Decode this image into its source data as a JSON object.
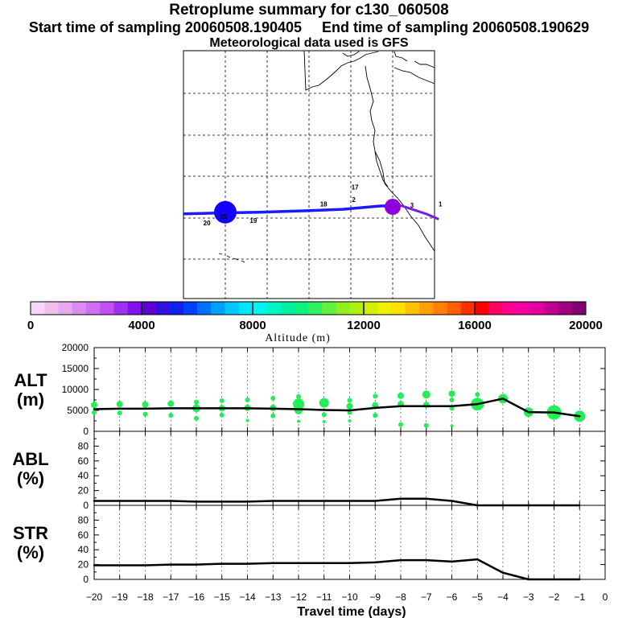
{
  "header": {
    "title": "Retroplume summary for c130_060508",
    "start_label": "Start time of sampling 20060508.190405",
    "end_label": "End time of sampling 20060508.190629",
    "met_line": "Meteorological data used is GFS"
  },
  "map": {
    "day_labels": [
      {
        "text": "1",
        "lon": -108.6,
        "lat": 32.3
      },
      {
        "text": "2",
        "lon": -129.3,
        "lat": 33.4
      },
      {
        "text": "3",
        "lon": -115.4,
        "lat": 32.0
      },
      {
        "text": "17",
        "lon": -129.0,
        "lat": 36.4
      },
      {
        "text": "18",
        "lon": -136.5,
        "lat": 32.3
      },
      {
        "text": "19",
        "lon": -153.3,
        "lat": 28.3
      },
      {
        "text": "20",
        "lon": -164.4,
        "lat": 27.7
      },
      {
        "text": "15",
        "lon": -160.4,
        "lat": 29.3
      }
    ],
    "track_colors": [
      "#1a1aff",
      "#7a1ae6"
    ],
    "marker_color_large": "#1400ff",
    "marker_color_small": "#8c00dc"
  },
  "colorbar": {
    "colors": [
      "#f6d8f6",
      "#efc0f0",
      "#e8a8ee",
      "#dc8cf0",
      "#d070f0",
      "#c050f0",
      "#a030f0",
      "#8010f0",
      "#6000d0",
      "#3010e0",
      "#1020f0",
      "#0040ff",
      "#0070ff",
      "#00a0ff",
      "#00c8ff",
      "#00e6ff",
      "#00f5f0",
      "#00f5c8",
      "#00f0a0",
      "#10f080",
      "#30f060",
      "#60f040",
      "#90f020",
      "#b0f010",
      "#d0f000",
      "#f0f000",
      "#ffe000",
      "#ffc000",
      "#ffa000",
      "#ff8000",
      "#ff6000",
      "#ff3000",
      "#ff0000",
      "#ff0060",
      "#ff0090",
      "#f000a0",
      "#e000a0",
      "#c00090",
      "#a00080",
      "#800070"
    ],
    "tick_labels": [
      "0",
      "4000",
      "8000",
      "12000",
      "16000",
      "20000"
    ],
    "label": "Altitude (m)"
  },
  "chart_data": [
    {
      "type": "line",
      "panel": "ALT",
      "ylabel_line1": "ALT",
      "ylabel_line2": "(m)",
      "ylim": [
        0,
        20000
      ],
      "yticks": [
        0,
        5000,
        10000,
        15000,
        20000
      ],
      "x": [
        -20,
        -19,
        -18,
        -17,
        -16,
        -15,
        -14,
        -13,
        -12,
        -11,
        -10,
        -9,
        -8,
        -7,
        -6,
        -5,
        -4,
        -3,
        -2,
        -1
      ],
      "values": [
        5300,
        5400,
        5400,
        5500,
        5500,
        5500,
        5500,
        5400,
        5300,
        5100,
        5000,
        5600,
        6000,
        6000,
        6000,
        6500,
        7800,
        4600,
        4500,
        3600
      ],
      "dots": [
        {
          "x": -20,
          "y": 6300,
          "r": 4
        },
        {
          "x": -20,
          "y": 4500,
          "r": 3
        },
        {
          "x": -19,
          "y": 6500,
          "r": 4
        },
        {
          "x": -19,
          "y": 4400,
          "r": 3
        },
        {
          "x": -18,
          "y": 6400,
          "r": 4
        },
        {
          "x": -18,
          "y": 4100,
          "r": 3
        },
        {
          "x": -17,
          "y": 6600,
          "r": 4
        },
        {
          "x": -17,
          "y": 3800,
          "r": 3
        },
        {
          "x": -16,
          "y": 7000,
          "r": 3
        },
        {
          "x": -16,
          "y": 5500,
          "r": 5
        },
        {
          "x": -16,
          "y": 3100,
          "r": 3
        },
        {
          "x": -15,
          "y": 7300,
          "r": 3
        },
        {
          "x": -15,
          "y": 5500,
          "r": 4
        },
        {
          "x": -15,
          "y": 3900,
          "r": 3
        },
        {
          "x": -14,
          "y": 7500,
          "r": 3
        },
        {
          "x": -14,
          "y": 5600,
          "r": 4
        },
        {
          "x": -14,
          "y": 2600,
          "r": 2
        },
        {
          "x": -13,
          "y": 7900,
          "r": 3
        },
        {
          "x": -13,
          "y": 5600,
          "r": 4
        },
        {
          "x": -13,
          "y": 3700,
          "r": 3
        },
        {
          "x": -12,
          "y": 8300,
          "r": 3
        },
        {
          "x": -12,
          "y": 6500,
          "r": 7
        },
        {
          "x": -12,
          "y": 5000,
          "r": 5
        },
        {
          "x": -12,
          "y": 2400,
          "r": 2
        },
        {
          "x": -11,
          "y": 6800,
          "r": 6
        },
        {
          "x": -11,
          "y": 4000,
          "r": 3
        },
        {
          "x": -11,
          "y": 2300,
          "r": 2
        },
        {
          "x": -10,
          "y": 7400,
          "r": 3
        },
        {
          "x": -10,
          "y": 6000,
          "r": 4
        },
        {
          "x": -10,
          "y": 4500,
          "r": 3
        },
        {
          "x": -10,
          "y": 2500,
          "r": 2
        },
        {
          "x": -9,
          "y": 8400,
          "r": 3
        },
        {
          "x": -9,
          "y": 6200,
          "r": 4
        },
        {
          "x": -9,
          "y": 3800,
          "r": 3
        },
        {
          "x": -8,
          "y": 8500,
          "r": 4
        },
        {
          "x": -8,
          "y": 6500,
          "r": 4
        },
        {
          "x": -8,
          "y": 1600,
          "r": 3
        },
        {
          "x": -7,
          "y": 8800,
          "r": 5
        },
        {
          "x": -7,
          "y": 6300,
          "r": 4
        },
        {
          "x": -7,
          "y": 1400,
          "r": 3
        },
        {
          "x": -6,
          "y": 9000,
          "r": 4
        },
        {
          "x": -6,
          "y": 7500,
          "r": 3
        },
        {
          "x": -6,
          "y": 5500,
          "r": 3
        },
        {
          "x": -6,
          "y": 1300,
          "r": 2
        },
        {
          "x": -5,
          "y": 8800,
          "r": 3
        },
        {
          "x": -5,
          "y": 6500,
          "r": 8
        },
        {
          "x": -4,
          "y": 7800,
          "r": 6
        },
        {
          "x": -3,
          "y": 4600,
          "r": 6
        },
        {
          "x": -2,
          "y": 4500,
          "r": 9
        },
        {
          "x": -1,
          "y": 3600,
          "r": 7
        }
      ],
      "dot_color": "#22ee55"
    },
    {
      "type": "line",
      "panel": "ABL",
      "ylabel_line1": "ABL",
      "ylabel_line2": "(%)",
      "ylim": [
        0,
        100
      ],
      "yticks": [
        0,
        20,
        40,
        60,
        80
      ],
      "x": [
        -20,
        -19,
        -18,
        -17,
        -16,
        -15,
        -14,
        -13,
        -12,
        -11,
        -10,
        -9,
        -8,
        -7,
        -6,
        -5,
        -4,
        -3,
        -2,
        -1
      ],
      "values": [
        6,
        6,
        6,
        6,
        5,
        5,
        5,
        6,
        6,
        6,
        6,
        6,
        9,
        9,
        6,
        0,
        0,
        0,
        0,
        0
      ]
    },
    {
      "type": "line",
      "panel": "STR",
      "ylabel_line1": "STR",
      "ylabel_line2": "(%)",
      "ylim": [
        0,
        100
      ],
      "yticks": [
        0,
        20,
        40,
        60,
        80
      ],
      "x": [
        -20,
        -19,
        -18,
        -17,
        -16,
        -15,
        -14,
        -13,
        -12,
        -11,
        -10,
        -9,
        -8,
        -7,
        -6,
        -5,
        -4,
        -3,
        -2,
        -1
      ],
      "values": [
        19,
        19,
        19,
        20,
        20,
        21,
        21,
        22,
        22,
        22,
        22,
        23,
        26,
        26,
        24,
        27,
        9,
        0,
        0,
        0
      ]
    }
  ],
  "xaxis": {
    "xlim": [
      -20,
      0
    ],
    "tick_labels": [
      "−20",
      "−19",
      "−18",
      "−17",
      "−16",
      "−15",
      "−14",
      "−13",
      "−12",
      "−11",
      "−10",
      "−9",
      "−8",
      "−7",
      "−6",
      "−5",
      "−4",
      "−3",
      "−2",
      "−1",
      "0"
    ],
    "label": "Travel time (days)"
  }
}
